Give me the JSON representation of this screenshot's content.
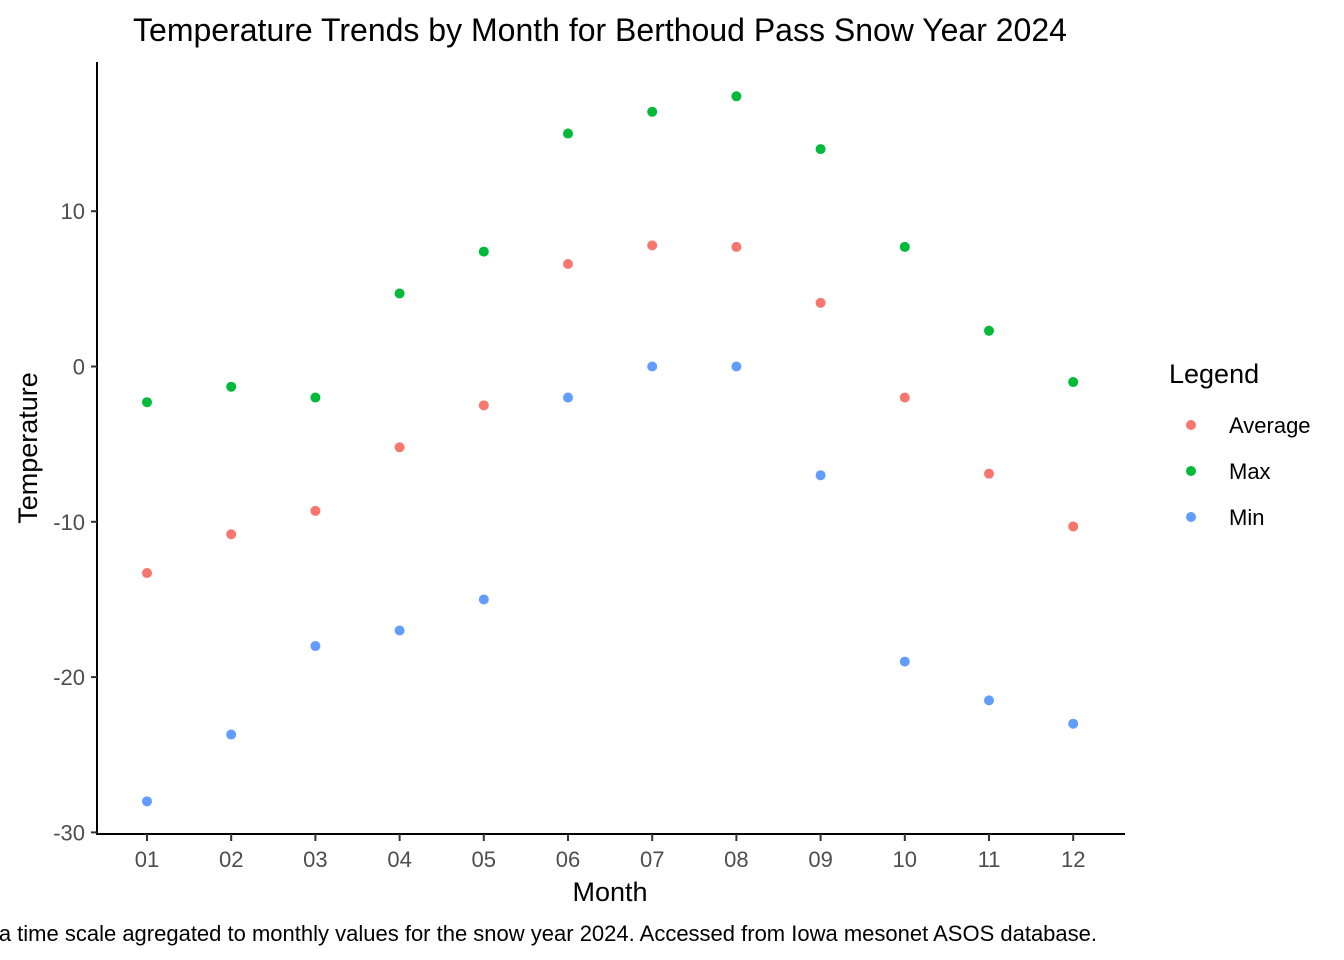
{
  "chart_data": {
    "type": "scatter",
    "title": "Temperature Trends by Month for Berthoud Pass Snow Year 2024",
    "xlabel": "Month",
    "ylabel": "Temperature",
    "categories": [
      "01",
      "02",
      "03",
      "04",
      "05",
      "06",
      "07",
      "08",
      "09",
      "10",
      "11",
      "12"
    ],
    "y_ticks": [
      -30,
      -20,
      -10,
      0,
      10
    ],
    "ylim": [
      -30,
      18.5
    ],
    "grid": false,
    "legend": {
      "title": "Legend",
      "position": "right"
    },
    "series": [
      {
        "name": "Average",
        "color": "#F8766D",
        "values": [
          -13.3,
          -10.8,
          -9.3,
          -5.2,
          -2.5,
          6.6,
          7.8,
          7.7,
          4.1,
          -2.0,
          -6.9,
          -10.3
        ]
      },
      {
        "name": "Max",
        "color": "#00BA38",
        "values": [
          -2.3,
          -1.3,
          -2.0,
          4.7,
          7.4,
          15.0,
          16.4,
          17.4,
          14.0,
          7.7,
          2.3,
          -1.0
        ]
      },
      {
        "name": "Min",
        "color": "#619CFF",
        "values": [
          -28.0,
          -23.7,
          -18.0,
          -17.0,
          -15.0,
          -2.0,
          0.0,
          0.0,
          -7.0,
          -19.0,
          -21.5,
          -23.0
        ]
      }
    ],
    "caption": "a time scale agregated to monthly values for the snow year 2024. Accessed from Iowa mesonet ASOS database."
  }
}
